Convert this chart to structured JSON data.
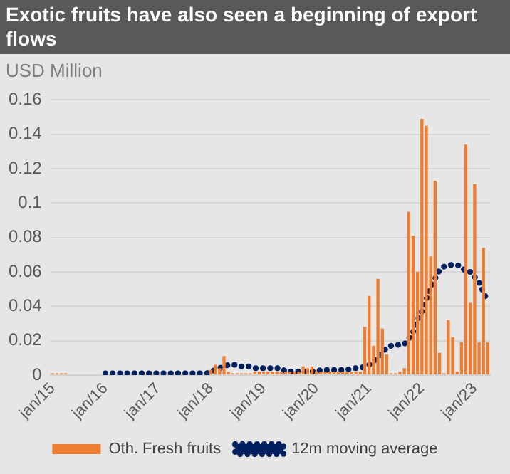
{
  "chart_data": {
    "type": "bar",
    "title": "Exotic fruits have also seen a beginning of export flows",
    "ylabel": "USD Million",
    "categories": [
      "jan/15",
      null,
      null,
      null,
      null,
      null,
      null,
      null,
      null,
      null,
      null,
      null,
      "jan/16",
      null,
      null,
      null,
      null,
      null,
      null,
      null,
      null,
      null,
      null,
      null,
      "jan/17",
      null,
      null,
      null,
      null,
      null,
      null,
      null,
      null,
      null,
      null,
      null,
      "jan/18",
      null,
      null,
      null,
      null,
      null,
      null,
      null,
      null,
      null,
      null,
      null,
      "jan/19",
      null,
      null,
      null,
      null,
      null,
      null,
      null,
      null,
      null,
      null,
      null,
      "jan/20",
      null,
      null,
      null,
      null,
      null,
      null,
      null,
      null,
      null,
      null,
      null,
      "jan/21",
      null,
      null,
      null,
      null,
      null,
      null,
      null,
      null,
      null,
      null,
      null,
      "jan/22",
      null,
      null,
      null,
      null,
      null,
      null,
      null,
      null,
      null,
      null,
      null,
      "jan/23",
      null,
      null,
      null
    ],
    "series": [
      {
        "name": "Oth. Fresh fruits",
        "color": "#ed7d31",
        "values": [
          0.001,
          0.001,
          0.001,
          0.001,
          0,
          0,
          0,
          0,
          0,
          0,
          0,
          0,
          0,
          0,
          0,
          0,
          0,
          0,
          0,
          0,
          0,
          0,
          0,
          0,
          0,
          0,
          0,
          0,
          0,
          0,
          0,
          0,
          0,
          0,
          0,
          0,
          0.003,
          0.006,
          0.004,
          0.011,
          0.002,
          0.001,
          0.001,
          0.001,
          0.001,
          0.001,
          0.002,
          0.002,
          0.002,
          0.002,
          0.002,
          0.002,
          0.002,
          0.002,
          0.002,
          0.002,
          0.002,
          0.005,
          0.004,
          0.005,
          0.002,
          0.002,
          0.002,
          0.002,
          0.002,
          0.002,
          0.002,
          0.002,
          0.002,
          0.002,
          0.002,
          0.028,
          0.046,
          0.017,
          0.056,
          0.027,
          0.012,
          0.001,
          0.001,
          0.002,
          0.004,
          0.095,
          0.081,
          0.06,
          0.149,
          0.145,
          0.069,
          0.113,
          0.013,
          0.001,
          0.032,
          0.022,
          0.002,
          0.019,
          0.134,
          0.042,
          0.111,
          0.019,
          0.074,
          0.019
        ]
      },
      {
        "name": "12m moving average",
        "type": "line",
        "color": "#002060",
        "line_style": "dotted",
        "values": [
          null,
          null,
          null,
          null,
          null,
          null,
          null,
          null,
          null,
          null,
          null,
          null,
          0.001,
          0.001,
          0.001,
          0.001,
          0.001,
          0.001,
          0.001,
          0.001,
          0.001,
          0.001,
          0.001,
          0.001,
          0.001,
          0.001,
          0.001,
          0.001,
          0.001,
          0.001,
          0.001,
          0.001,
          0.001,
          0.001,
          0.001,
          0.001,
          0.002,
          0.003,
          0.004,
          0.005,
          0.006,
          0.006,
          0.006,
          0.005,
          0.005,
          0.005,
          0.004,
          0.004,
          0.004,
          0.004,
          0.004,
          0.004,
          0.004,
          0.002,
          0.002,
          0.002,
          0.002,
          0.002,
          0.002,
          0.002,
          0.002,
          0.003,
          0.003,
          0.003,
          0.003,
          0.003,
          0.003,
          0.003,
          0.004,
          0.004,
          0.004,
          0.005,
          0.006,
          0.008,
          0.01,
          0.013,
          0.016,
          0.017,
          0.017,
          0.018,
          0.018,
          0.021,
          0.025,
          0.032,
          0.037,
          0.044,
          0.051,
          0.056,
          0.061,
          0.063,
          0.064,
          0.064,
          0.064,
          0.063,
          0.06,
          0.06,
          0.057,
          0.054,
          0.048,
          0.043
        ]
      }
    ],
    "ylim": [
      0,
      0.16
    ],
    "yticks": [
      0,
      0.02,
      0.04,
      0.06,
      0.08,
      {
        "value": 0.1,
        "label": "0.1"
      },
      0.12,
      0.14,
      0.16
    ],
    "grid": "y",
    "legend": "bottom"
  }
}
